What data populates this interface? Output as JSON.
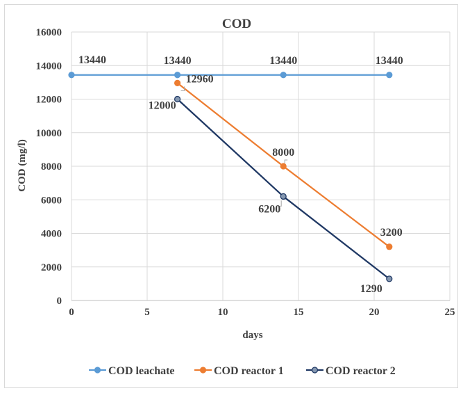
{
  "chart_data": {
    "type": "line",
    "title": "COD",
    "xlabel": "days",
    "ylabel": "COD (mg/l)",
    "xlim": [
      0,
      25
    ],
    "ylim": [
      0,
      16000
    ],
    "xticks": [
      0,
      5,
      10,
      15,
      20,
      25
    ],
    "yticks": [
      0,
      2000,
      4000,
      6000,
      8000,
      10000,
      12000,
      14000,
      16000
    ],
    "grid": true,
    "legend_position": "bottom",
    "series": [
      {
        "name": "COD leachate",
        "color": "#5b9bd5",
        "marker_fill": "#5b9bd5",
        "x": [
          0,
          7,
          14,
          21
        ],
        "y": [
          13440,
          13440,
          13440,
          13440
        ],
        "labels": [
          "13440",
          "13440",
          "13440",
          "13440"
        ]
      },
      {
        "name": "COD reactor 1",
        "color": "#ed7d31",
        "marker_fill": "#ed7d31",
        "x": [
          7,
          14,
          21
        ],
        "y": [
          12960,
          8000,
          3200
        ],
        "labels": [
          "12960",
          "8000",
          "3200"
        ]
      },
      {
        "name": "COD reactor 2",
        "color": "#1f3864",
        "marker_fill": "#8497b0",
        "x": [
          7,
          14,
          21
        ],
        "y": [
          12000,
          6200,
          1290
        ],
        "labels": [
          "12000",
          "6200",
          "1290"
        ]
      }
    ]
  }
}
